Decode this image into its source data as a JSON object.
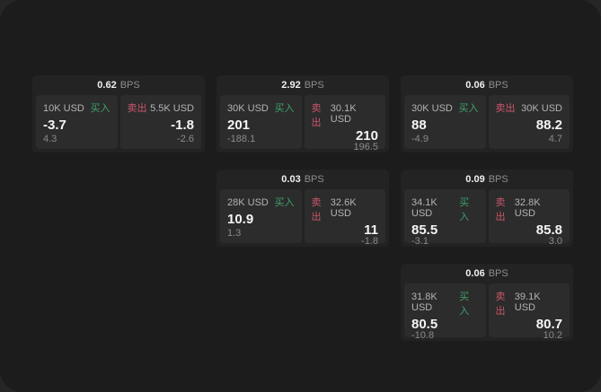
{
  "labels": {
    "bps_suffix": "BPS",
    "buy": "买入",
    "sell": "卖出"
  },
  "colors": {
    "buy_green": "#3fa06a",
    "sell_red": "#c9566b",
    "panel_bg": "#1c1c1c",
    "card_bg": "#232323",
    "cell_bg": "#2c2c2c"
  },
  "cards": [
    {
      "bps": "0.62",
      "col": 1,
      "row": 1,
      "buy": {
        "amount": "10K USD",
        "price": "-3.7",
        "change": "4.3"
      },
      "sell": {
        "amount": "5.5K USD",
        "price": "-1.8",
        "change": "-2.6"
      }
    },
    {
      "bps": "2.92",
      "col": 2,
      "row": 1,
      "buy": {
        "amount": "30K USD",
        "price": "201",
        "change": "-188.1"
      },
      "sell": {
        "amount": "30.1K USD",
        "price": "210",
        "change": "196.5"
      }
    },
    {
      "bps": "0.06",
      "col": 3,
      "row": 1,
      "buy": {
        "amount": "30K USD",
        "price": "88",
        "change": "-4.9"
      },
      "sell": {
        "amount": "30K USD",
        "price": "88.2",
        "change": "4.7"
      }
    },
    {
      "bps": "0.03",
      "col": 2,
      "row": 2,
      "buy": {
        "amount": "28K USD",
        "price": "10.9",
        "change": "1.3"
      },
      "sell": {
        "amount": "32.6K USD",
        "price": "11",
        "change": "-1.8"
      }
    },
    {
      "bps": "0.09",
      "col": 3,
      "row": 2,
      "buy": {
        "amount": "34.1K USD",
        "price": "85.5",
        "change": "-3.1"
      },
      "sell": {
        "amount": "32.8K USD",
        "price": "85.8",
        "change": "3.0"
      }
    },
    {
      "bps": "0.06",
      "col": 3,
      "row": 3,
      "buy": {
        "amount": "31.8K USD",
        "price": "80.5",
        "change": "-10.8"
      },
      "sell": {
        "amount": "39.1K USD",
        "price": "80.7",
        "change": "10.2"
      }
    }
  ]
}
